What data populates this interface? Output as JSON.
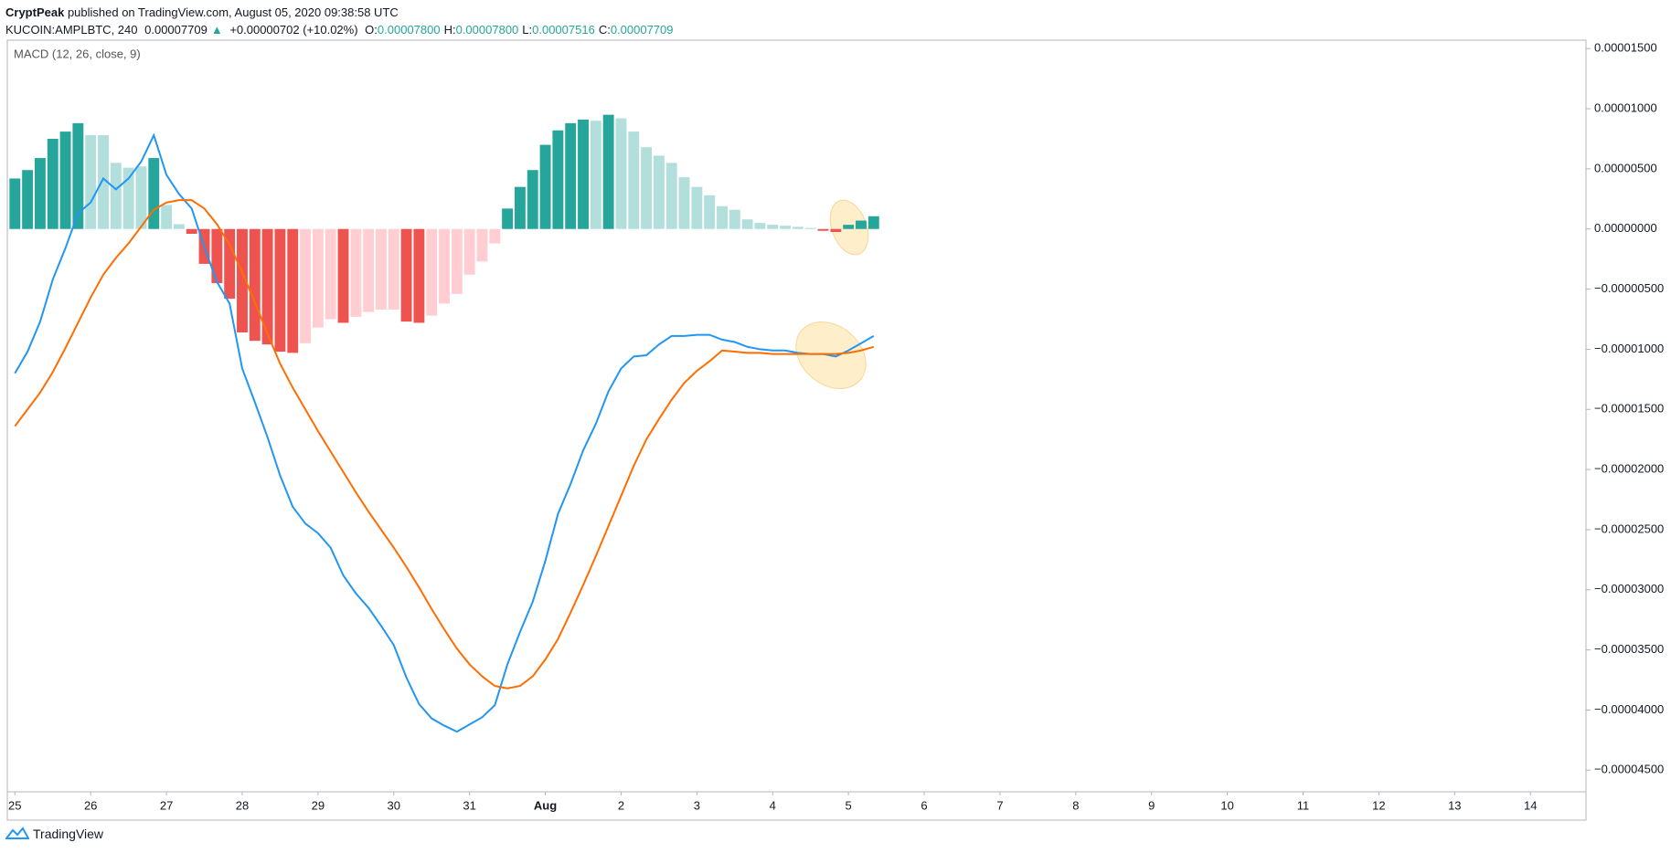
{
  "header": {
    "author": "CryptPeak",
    "published": "published on TradingView.com, August 05, 2020 09:38:58 UTC",
    "symbol": "KUCOIN:AMPLBTC, 240",
    "last": "0.00007709",
    "arrow": "▲",
    "change": "+0.00000702 (+10.02%)",
    "ohlc": [
      {
        "label": "O:",
        "value": "0.00007800"
      },
      {
        "label": "H:",
        "value": "0.00007800"
      },
      {
        "label": "L:",
        "value": "0.00007516"
      },
      {
        "label": "C:",
        "value": "0.00007709"
      }
    ]
  },
  "footer": {
    "brand": "TradingView"
  },
  "chart_data": {
    "type": "macd",
    "title": "MACD (12, 26, close, 9)",
    "x": [
      0,
      1,
      2,
      3,
      4,
      5,
      6,
      7,
      8,
      9,
      10,
      11,
      12,
      13,
      14,
      15,
      16,
      17,
      18,
      19,
      20,
      21,
      22,
      23,
      24,
      25,
      26,
      27,
      28,
      29,
      30,
      31,
      32,
      33,
      34,
      35,
      36,
      37,
      38,
      39,
      40,
      41,
      42,
      43,
      44,
      45,
      46,
      47,
      48,
      49,
      50,
      51,
      52,
      53,
      54,
      55,
      56,
      57,
      58,
      59,
      60,
      61,
      62,
      63,
      64,
      65,
      66,
      67,
      68
    ],
    "xlim": [
      -0.6,
      124.4
    ],
    "xticks": [
      {
        "value": 0,
        "label": "25"
      },
      {
        "value": 6,
        "label": "26"
      },
      {
        "value": 12,
        "label": "27"
      },
      {
        "value": 18,
        "label": "28"
      },
      {
        "value": 24,
        "label": "29"
      },
      {
        "value": 30,
        "label": "30"
      },
      {
        "value": 36,
        "label": "31"
      },
      {
        "value": 42,
        "label": "Aug"
      },
      {
        "value": 48,
        "label": "2"
      },
      {
        "value": 54,
        "label": "3"
      },
      {
        "value": 60,
        "label": "4"
      },
      {
        "value": 66,
        "label": "5"
      },
      {
        "value": 72,
        "label": "6"
      },
      {
        "value": 78,
        "label": "7"
      },
      {
        "value": 84,
        "label": "8"
      },
      {
        "value": 90,
        "label": "9"
      },
      {
        "value": 96,
        "label": "10"
      },
      {
        "value": 102,
        "label": "11"
      },
      {
        "value": 108,
        "label": "12"
      },
      {
        "value": 114,
        "label": "13"
      },
      {
        "value": 120,
        "label": "14"
      }
    ],
    "ylim": [
      -4.68e-05,
      1.57e-05
    ],
    "yticks": [
      {
        "value": 1.5e-05,
        "label": "0.00001500"
      },
      {
        "value": 1e-05,
        "label": "0.00001000"
      },
      {
        "value": 5e-06,
        "label": "0.00000500"
      },
      {
        "value": 0,
        "label": "0.00000000"
      },
      {
        "value": -5e-06,
        "label": "−0.00000500"
      },
      {
        "value": -1e-05,
        "label": "−0.00001000"
      },
      {
        "value": -1.5e-05,
        "label": "−0.00001500"
      },
      {
        "value": -2e-05,
        "label": "−0.00002000"
      },
      {
        "value": -2.5e-05,
        "label": "−0.00002500"
      },
      {
        "value": -3e-05,
        "label": "−0.00003000"
      },
      {
        "value": -3.5e-05,
        "label": "−0.00003500"
      },
      {
        "value": -4e-05,
        "label": "−0.00004000"
      },
      {
        "value": -4.5e-05,
        "label": "−0.00004500"
      }
    ],
    "grid": false,
    "series": [
      {
        "kind": "histogram",
        "values": [
          4.2e-06,
          4.9e-06,
          5.9e-06,
          7.5e-06,
          8.1e-06,
          8.8e-06,
          7.8e-06,
          7.8e-06,
          5.5e-06,
          5.1e-06,
          5.2e-06,
          5.9e-06,
          2e-06,
          4e-07,
          -4e-07,
          -2.9e-06,
          -4.5e-06,
          -5.8e-06,
          -8.6e-06,
          -9.3e-06,
          -9.6e-06,
          -1.02e-05,
          -1.03e-05,
          -9.5e-06,
          -8.2e-06,
          -7.5e-06,
          -7.8e-06,
          -7.3e-06,
          -6.9e-06,
          -6.7e-06,
          -6.7e-06,
          -7.7e-06,
          -7.8e-06,
          -7.2e-06,
          -6.2e-06,
          -5.4e-06,
          -3.8e-06,
          -2.7e-06,
          -1.2e-06,
          1.7e-06,
          3.5e-06,
          4.9e-06,
          7e-06,
          8.2e-06,
          8.8e-06,
          9.1e-06,
          9e-06,
          9.5e-06,
          9.2e-06,
          8.1e-06,
          6.8e-06,
          6.1e-06,
          5.5e-06,
          4.3e-06,
          3.5e-06,
          2.8e-06,
          1.9e-06,
          1.6e-06,
          8e-07,
          5e-07,
          3.5e-07,
          2.7e-07,
          1.8e-07,
          9e-08,
          -1.5e-07,
          -2.5e-07,
          3.5e-07,
          7e-07,
          1.06e-06
        ],
        "colors": [
          "#26a69a",
          "#26a69a",
          "#26a69a",
          "#26a69a",
          "#26a69a",
          "#26a69a",
          "#b2dfdb",
          "#b2dfdb",
          "#b2dfdb",
          "#b2dfdb",
          "#b2dfdb",
          "#26a69a",
          "#b2dfdb",
          "#b2dfdb",
          "#ef5350",
          "#ef5350",
          "#ef5350",
          "#ef5350",
          "#ef5350",
          "#ef5350",
          "#ef5350",
          "#ef5350",
          "#ef5350",
          "#ffcdd2",
          "#ffcdd2",
          "#ffcdd2",
          "#ef5350",
          "#ffcdd2",
          "#ffcdd2",
          "#ffcdd2",
          "#ffcdd2",
          "#ef5350",
          "#ef5350",
          "#ffcdd2",
          "#ffcdd2",
          "#ffcdd2",
          "#ffcdd2",
          "#ffcdd2",
          "#ffcdd2",
          "#26a69a",
          "#26a69a",
          "#26a69a",
          "#26a69a",
          "#26a69a",
          "#26a69a",
          "#26a69a",
          "#b2dfdb",
          "#26a69a",
          "#b2dfdb",
          "#b2dfdb",
          "#b2dfdb",
          "#b2dfdb",
          "#b2dfdb",
          "#b2dfdb",
          "#b2dfdb",
          "#b2dfdb",
          "#b2dfdb",
          "#b2dfdb",
          "#b2dfdb",
          "#b2dfdb",
          "#b2dfdb",
          "#b2dfdb",
          "#b2dfdb",
          "#b2dfdb",
          "#ef5350",
          "#ef5350",
          "#26a69a",
          "#26a69a",
          "#26a69a"
        ]
      },
      {
        "kind": "line",
        "color": "#2196f3",
        "values": [
          -1.2e-05,
          -1.02e-05,
          -7.7e-06,
          -4.2e-06,
          -1.6e-06,
          1.3e-06,
          2.2e-06,
          4.2e-06,
          3.3e-06,
          4.2e-06,
          5.6e-06,
          7.8e-06,
          4.5e-06,
          2.9e-06,
          1.7e-06,
          -1.5e-06,
          -4.4e-06,
          -6.2e-06,
          -1.16e-05,
          -1.44e-05,
          -1.73e-05,
          -2.05e-05,
          -2.31e-05,
          -2.45e-05,
          -2.53e-05,
          -2.65e-05,
          -2.88e-05,
          -3.03e-05,
          -3.15e-05,
          -3.3e-05,
          -3.46e-05,
          -3.73e-05,
          -3.95e-05,
          -4.07e-05,
          -4.13e-05,
          -4.18e-05,
          -4.12e-05,
          -4.06e-05,
          -3.96e-05,
          -3.62e-05,
          -3.35e-05,
          -3.1e-05,
          -2.76e-05,
          -2.37e-05,
          -2.12e-05,
          -1.84e-05,
          -1.62e-05,
          -1.35e-05,
          -1.16e-05,
          -1.06e-05,
          -1.05e-05,
          -9.6e-06,
          -8.9e-06,
          -8.9e-06,
          -8.8e-06,
          -8.8e-06,
          -9.2e-06,
          -9.4e-06,
          -9.8e-06,
          -1e-05,
          -1.01e-05,
          -1.01e-05,
          -1.03e-05,
          -1.04e-05,
          -1.04e-05,
          -1.06e-05,
          -1.01e-05,
          -9.5e-06,
          -8.9e-06
        ]
      },
      {
        "kind": "line",
        "color": "#ff6d00",
        "values": [
          -1.64e-05,
          -1.5e-05,
          -1.36e-05,
          -1.19e-05,
          -9.9e-06,
          -7.8e-06,
          -5.7e-06,
          -3.8e-06,
          -2.4e-06,
          -1.2e-06,
          2e-07,
          1.6e-06,
          2.2e-06,
          2.4e-06,
          2.4e-06,
          1.7e-06,
          4e-07,
          -1.3e-06,
          -3.6e-06,
          -6.1e-06,
          -8.7e-06,
          -1.12e-05,
          -1.32e-05,
          -1.5e-05,
          -1.68e-05,
          -1.85e-05,
          -2.02e-05,
          -2.19e-05,
          -2.35e-05,
          -2.5e-05,
          -2.65e-05,
          -2.81e-05,
          -2.98e-05,
          -3.16e-05,
          -3.33e-05,
          -3.49e-05,
          -3.62e-05,
          -3.72e-05,
          -3.8e-05,
          -3.82e-05,
          -3.8e-05,
          -3.72e-05,
          -3.58e-05,
          -3.41e-05,
          -3.19e-05,
          -2.96e-05,
          -2.72e-05,
          -2.47e-05,
          -2.22e-05,
          -1.97e-05,
          -1.75e-05,
          -1.58e-05,
          -1.42e-05,
          -1.28e-05,
          -1.18e-05,
          -1.1e-05,
          -1.01e-05,
          -1.02e-05,
          -1.03e-05,
          -1.03e-05,
          -1.04e-05,
          -1.04e-05,
          -1.04e-05,
          -1.04e-05,
          -1.04e-05,
          -1.04e-05,
          -1.03e-05,
          -1.01e-05,
          -9.8e-06
        ]
      }
    ]
  }
}
